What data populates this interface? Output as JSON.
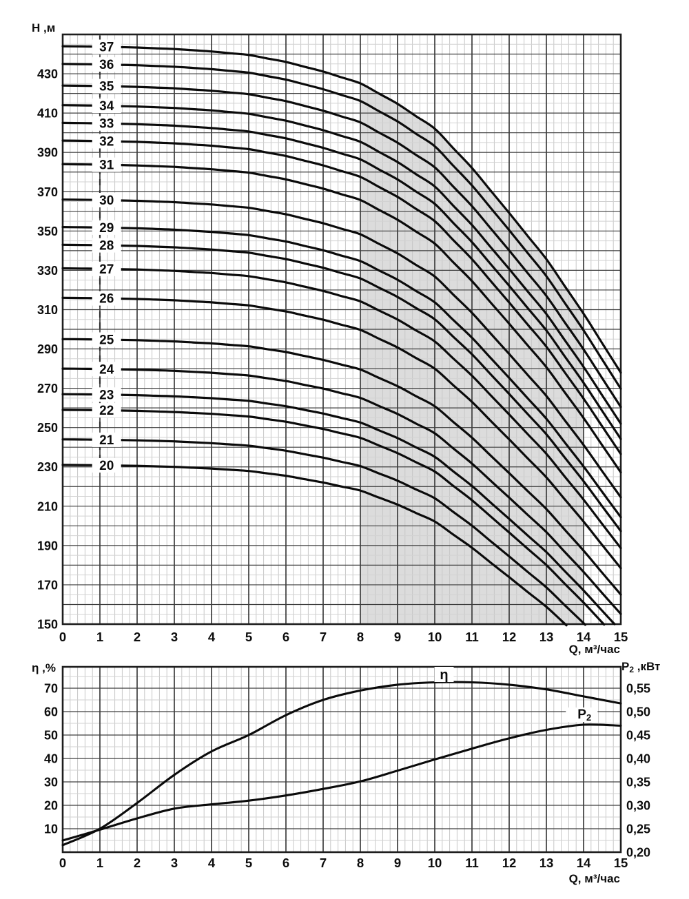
{
  "figure": {
    "kind": "pump-performance-curves",
    "style": {
      "background": "#ffffff",
      "curve_color": "#0b0b0b",
      "grid_major": "#3d3d3d",
      "grid_mid": "#d2d2d2",
      "grid_minor": "#c7c7c7",
      "shading": "#dcdcdc",
      "text_color": "#0d0d0d"
    }
  },
  "chart_data": [
    {
      "type": "line",
      "name": "head-vs-flow",
      "xlabel": "Q, м³/час",
      "ylabel": "H ,м",
      "xlim": [
        0,
        15
      ],
      "ylim": [
        150,
        450
      ],
      "x_ticks": [
        0,
        1,
        2,
        3,
        4,
        5,
        6,
        7,
        8,
        9,
        10,
        11,
        12,
        13,
        14,
        15
      ],
      "y_ticks": [
        430,
        410,
        390,
        370,
        350,
        330,
        310,
        290,
        270,
        250,
        230,
        210,
        190,
        170,
        150
      ],
      "grid": {
        "major_x_step": 1,
        "minor_x_step": 0.2,
        "major_y_step": 10,
        "mid_y_step": 5
      },
      "operating_range_q": [
        8,
        14
      ],
      "label_column_q": 1,
      "stage_curves": {
        "comment": "H_n(Q) = head_at_q0 * shape_factor(Q)^(1+(reference_stage-stages)*droop_per_stage), clipped at H=150",
        "q_samples": [
          0,
          1,
          2,
          3,
          4,
          5,
          6,
          7,
          8,
          9,
          10,
          11,
          12,
          13,
          14,
          15
        ],
        "shape_factor": [
          1.0,
          0.9995,
          0.9985,
          0.9968,
          0.994,
          0.99,
          0.982,
          0.971,
          0.9575,
          0.934,
          0.9055,
          0.8605,
          0.809,
          0.756,
          0.6935,
          0.626
        ],
        "droop_per_stage": 0.02,
        "reference_stage": 37,
        "curves": [
          {
            "stages": 37,
            "head_at_q0": 444
          },
          {
            "stages": 36,
            "head_at_q0": 435
          },
          {
            "stages": 35,
            "head_at_q0": 424
          },
          {
            "stages": 34,
            "head_at_q0": 414
          },
          {
            "stages": 33,
            "head_at_q0": 405
          },
          {
            "stages": 32,
            "head_at_q0": 396
          },
          {
            "stages": 31,
            "head_at_q0": 384
          },
          {
            "stages": 30,
            "head_at_q0": 366
          },
          {
            "stages": 29,
            "head_at_q0": 352
          },
          {
            "stages": 28,
            "head_at_q0": 343
          },
          {
            "stages": 27,
            "head_at_q0": 331
          },
          {
            "stages": 26,
            "head_at_q0": 316
          },
          {
            "stages": 25,
            "head_at_q0": 295
          },
          {
            "stages": 24,
            "head_at_q0": 280
          },
          {
            "stages": 23,
            "head_at_q0": 267
          },
          {
            "stages": 22,
            "head_at_q0": 259
          },
          {
            "stages": 21,
            "head_at_q0": 244
          },
          {
            "stages": 20,
            "head_at_q0": 231
          }
        ]
      }
    },
    {
      "type": "line",
      "name": "efficiency-and-power-vs-flow",
      "xlabel": "Q, м³/час",
      "ylabel_left": "η ,%",
      "ylabel_right": "P2 ,кВт",
      "ylabel_right_parts": {
        "main": "P",
        "sub": "2",
        "rest": " ,кВт"
      },
      "xlim": [
        0,
        15
      ],
      "ylim_left": [
        0,
        79
      ],
      "ylim_right": [
        0.2,
        0.595
      ],
      "x_ticks": [
        0,
        1,
        2,
        3,
        4,
        5,
        6,
        7,
        8,
        9,
        10,
        11,
        12,
        13,
        14,
        15
      ],
      "left_ticks": [
        70,
        60,
        50,
        40,
        30,
        20,
        10
      ],
      "right_tick_labels": [
        "0,55",
        "0,50",
        "0,45",
        "0,40",
        "0,35",
        "0,30",
        "0,25",
        "0,20"
      ],
      "series": [
        {
          "name": "η",
          "axis": "left",
          "x": [
            0,
            1,
            2,
            3,
            4,
            5,
            6,
            7,
            8,
            9,
            10,
            11,
            12,
            13,
            14,
            15
          ],
          "values": [
            3,
            10,
            21,
            33,
            43,
            50,
            58.5,
            65,
            69,
            71.5,
            72.5,
            72.5,
            71.5,
            69.5,
            66.5,
            63.5
          ],
          "label": {
            "text": "η",
            "q": 10.25,
            "y_local": 26
          }
        },
        {
          "name": "P2",
          "axis": "right",
          "x": [
            0,
            1,
            2,
            3,
            4,
            5,
            6,
            7,
            8,
            9,
            10,
            11,
            12,
            13,
            14,
            15
          ],
          "values": [
            0.225,
            0.248,
            0.272,
            0.293,
            0.302,
            0.31,
            0.321,
            0.335,
            0.351,
            0.374,
            0.398,
            0.421,
            0.443,
            0.461,
            0.472,
            0.47
          ],
          "label": {
            "text_main": "P",
            "text_sub": "2",
            "q": 13.95,
            "y_local": 83
          }
        }
      ]
    }
  ]
}
